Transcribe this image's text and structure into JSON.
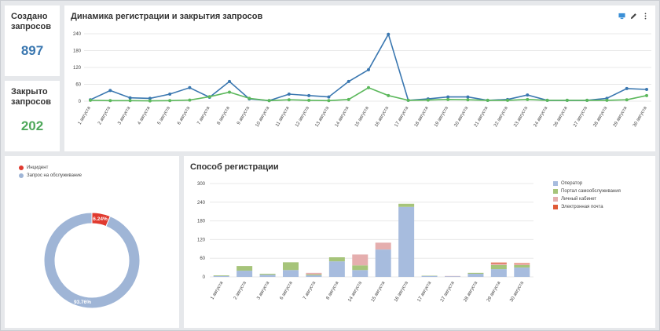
{
  "kpi": {
    "created": {
      "label": "Создано запросов",
      "value": "897"
    },
    "closed": {
      "label": "Закрыто запросов",
      "value": "202"
    }
  },
  "line_card": {
    "title": "Динамика регистрации и закрытия запросов",
    "icons": [
      "chart-type-icon",
      "edit-pencil-icon",
      "more-vertical-icon"
    ]
  },
  "donut_card": {
    "legend": [
      "Инцидент",
      "Запрос на обслуживание"
    ]
  },
  "bar_card": {
    "title": "Способ регистрации",
    "legend": [
      "Оператор",
      "Портал самообслуживания",
      "Личный кабинет",
      "Электронная почта"
    ]
  },
  "colors": {
    "created_line": "#3a77b0",
    "closed_line": "#5cb85c",
    "incident": "#e03a2f",
    "service_request": "#9fb5d6",
    "operator": "#a7bcde",
    "portal": "#a6c47a",
    "cabinet": "#e5aeae",
    "email": "#e05a36"
  },
  "chart_data": [
    {
      "type": "line",
      "title": "Динамика регистрации и закрытия запросов",
      "x": [
        "1 августа",
        "2 августа",
        "3 августа",
        "4 августа",
        "5 августа",
        "6 августа",
        "7 августа",
        "8 августа",
        "9 августа",
        "10 августа",
        "11 августа",
        "12 августа",
        "13 августа",
        "14 августа",
        "15 августа",
        "16 августа",
        "17 августа",
        "18 августа",
        "19 августа",
        "20 августа",
        "21 августа",
        "22 августа",
        "23 августа",
        "24 августа",
        "26 августа",
        "27 августа",
        "28 августа",
        "29 августа",
        "30 августа"
      ],
      "ylim": [
        0,
        240
      ],
      "yticks": [
        0,
        60,
        120,
        180,
        240
      ],
      "series": [
        {
          "values": [
            5,
            38,
            12,
            10,
            25,
            48,
            14,
            70,
            8,
            2,
            25,
            20,
            15,
            70,
            112,
            238,
            3,
            8,
            15,
            15,
            3,
            6,
            22,
            3,
            3,
            3,
            10,
            45,
            42
          ]
        },
        {
          "values": [
            3,
            2,
            2,
            1,
            2,
            4,
            16,
            32,
            10,
            2,
            5,
            3,
            2,
            6,
            48,
            20,
            3,
            4,
            6,
            5,
            3,
            3,
            6,
            3,
            3,
            3,
            3,
            5,
            20
          ]
        }
      ]
    },
    {
      "type": "pie",
      "labels": [
        "Инцидент",
        "Запрос на обслуживание"
      ],
      "values": [
        6.24,
        93.76
      ],
      "value_labels": [
        "6.24%",
        "93.76%"
      ]
    },
    {
      "type": "bar",
      "title": "Способ регистрации",
      "categories": [
        "1 августа",
        "2 августа",
        "3 августа",
        "6 августа",
        "7 августа",
        "8 августа",
        "14 августа",
        "15 августа",
        "16 августа",
        "17 августа",
        "27 августа",
        "28 августа",
        "29 августа",
        "30 августа"
      ],
      "ylim": [
        0,
        300
      ],
      "yticks": [
        0,
        60,
        120,
        180,
        240,
        300
      ],
      "series": [
        {
          "name": "Оператор",
          "values": [
            3,
            20,
            7,
            22,
            5,
            50,
            22,
            88,
            225,
            3,
            2,
            10,
            25,
            30
          ]
        },
        {
          "name": "Портал самообслуживания",
          "values": [
            2,
            15,
            3,
            25,
            3,
            13,
            15,
            0,
            10,
            1,
            0,
            3,
            13,
            8
          ]
        },
        {
          "name": "Личный кабинет",
          "values": [
            0,
            0,
            0,
            0,
            5,
            0,
            35,
            22,
            0,
            0,
            1,
            0,
            5,
            4
          ]
        },
        {
          "name": "Электронная почта",
          "values": [
            0,
            0,
            0,
            0,
            0,
            0,
            0,
            0,
            0,
            0,
            0,
            0,
            3,
            2
          ]
        }
      ]
    }
  ]
}
